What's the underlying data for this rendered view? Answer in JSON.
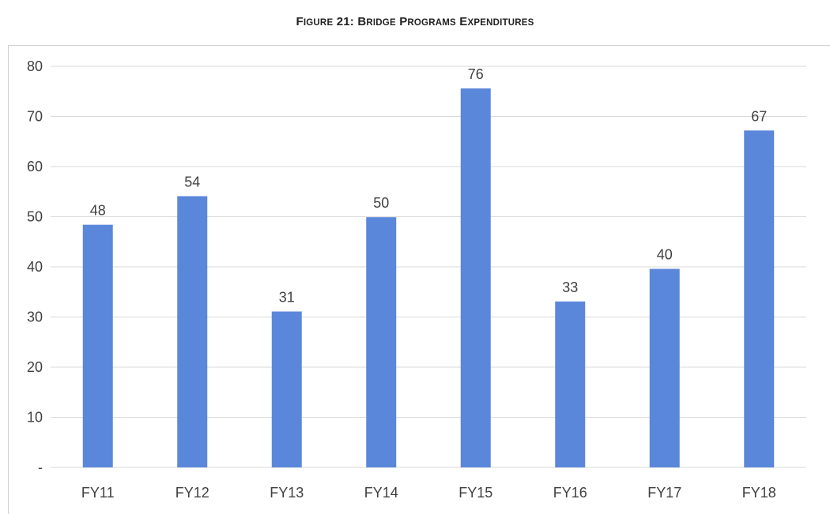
{
  "title": {
    "figure_prefix": "F",
    "figure_prefix_rest": "IGURE",
    "figure_number": "21:",
    "words": [
      {
        "cap": "B",
        "rest": "RIDGE"
      },
      {
        "cap": "P",
        "rest": "ROGRAMS"
      },
      {
        "cap": "E",
        "rest": "XPENDITURES"
      }
    ],
    "full_text": "FIGURE 21: BRIDGE PROGRAMS EXPENDITURES"
  },
  "chart_data": {
    "type": "bar",
    "title": "FIGURE 21: BRIDGE PROGRAMS EXPENDITURES",
    "xlabel": "",
    "ylabel": "",
    "categories": [
      "FY11",
      "FY12",
      "FY13",
      "FY14",
      "FY15",
      "FY16",
      "FY17",
      "FY18"
    ],
    "values": [
      48.4,
      54.1,
      31.1,
      49.9,
      75.6,
      33.1,
      39.6,
      67.2
    ],
    "data_labels": [
      "48",
      "54",
      "31",
      "50",
      "76",
      "33",
      "40",
      "67"
    ],
    "ylim": [
      0,
      80
    ],
    "yticks": [
      0,
      10,
      20,
      30,
      40,
      50,
      60,
      70,
      80
    ],
    "ytick_labels": [
      "-",
      "10",
      "20",
      "30",
      "40",
      "50",
      "60",
      "70",
      "80"
    ],
    "grid": true,
    "legend": "none",
    "bar_color": "#5b87da",
    "grid_color": "#d9d9d9",
    "text_color": "#404040"
  }
}
